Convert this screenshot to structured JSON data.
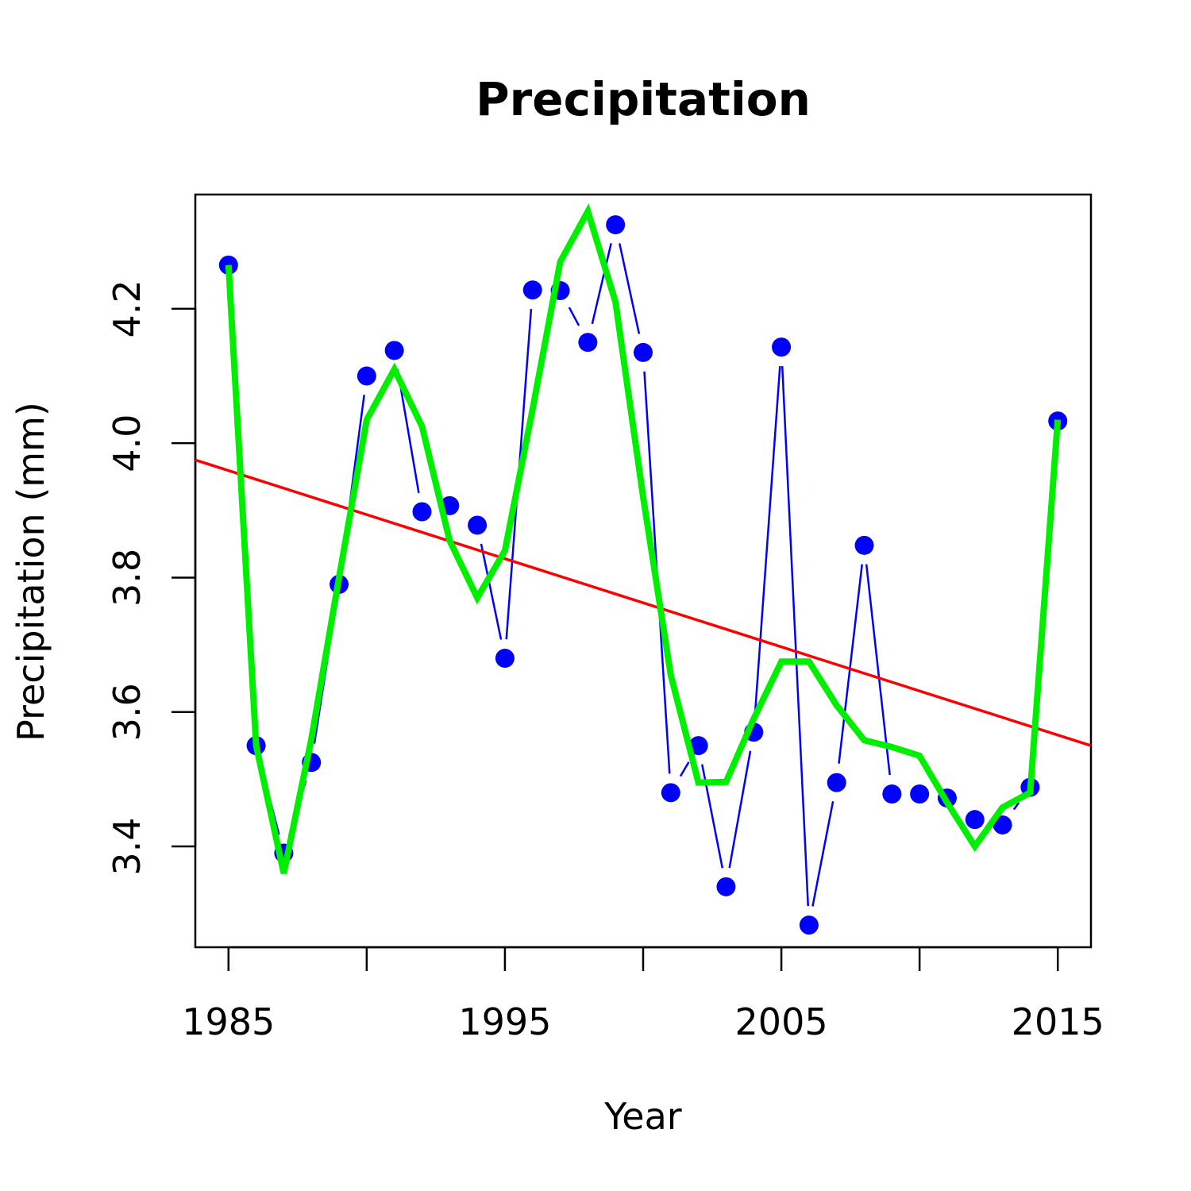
{
  "chart_data": {
    "type": "line",
    "title": "Precipitation",
    "xlabel": "Year",
    "ylabel": "Precipitation (mm)",
    "xlim": [
      1983.8,
      2016.2
    ],
    "ylim": [
      3.25,
      4.37
    ],
    "x_ticks": [
      1985,
      1990,
      1995,
      2000,
      2005,
      2010,
      2015
    ],
    "x_tick_labels": [
      "1985",
      "1995",
      "2005",
      "2015"
    ],
    "y_ticks": [
      3.4,
      3.6,
      3.8,
      4.0,
      4.2
    ],
    "y_tick_labels": [
      "3.4",
      "3.6",
      "3.8",
      "4.0",
      "4.2"
    ],
    "grid": false,
    "series": [
      {
        "kind": "points-and-lines",
        "color": "#0000ff",
        "x": [
          1985,
          1986,
          1987,
          1988,
          1989,
          1990,
          1991,
          1992,
          1993,
          1994,
          1995,
          1996,
          1997,
          1998,
          1999,
          2000,
          2001,
          2002,
          2003,
          2004,
          2005,
          2006,
          2007,
          2008,
          2009,
          2010,
          2011,
          2012,
          2013,
          2014,
          2015
        ],
        "y": [
          4.265,
          3.55,
          3.39,
          3.525,
          3.79,
          4.1,
          4.138,
          3.898,
          3.907,
          3.878,
          3.68,
          4.228,
          4.227,
          4.15,
          4.325,
          4.135,
          3.48,
          3.55,
          3.34,
          3.57,
          4.143,
          3.283,
          3.495,
          3.848,
          3.478,
          3.478,
          3.472,
          3.44,
          3.432,
          3.488,
          4.033
        ]
      },
      {
        "kind": "smoothed-line",
        "color": "#00ee00",
        "x": [
          1985,
          1986,
          1987,
          1988,
          1989,
          1990,
          1991,
          1992,
          1993,
          1994,
          1995,
          1996,
          1997,
          1998,
          1999,
          2000,
          2001,
          2002,
          2003,
          2004,
          2005,
          2006,
          2007,
          2008,
          2009,
          2010,
          2011,
          2012,
          2013,
          2014,
          2015
        ],
        "y": [
          4.265,
          3.55,
          3.36,
          3.56,
          3.8,
          4.035,
          4.11,
          4.025,
          3.855,
          3.77,
          3.84,
          4.05,
          4.27,
          4.345,
          4.21,
          3.92,
          3.655,
          3.495,
          3.496,
          3.59,
          3.675,
          3.675,
          3.61,
          3.558,
          3.548,
          3.535,
          3.465,
          3.4,
          3.458,
          3.48,
          4.035
        ]
      },
      {
        "kind": "trend-line",
        "color": "#ff0000",
        "x": [
          1983.8,
          2016.2
        ],
        "y": [
          3.975,
          3.55
        ]
      }
    ]
  }
}
